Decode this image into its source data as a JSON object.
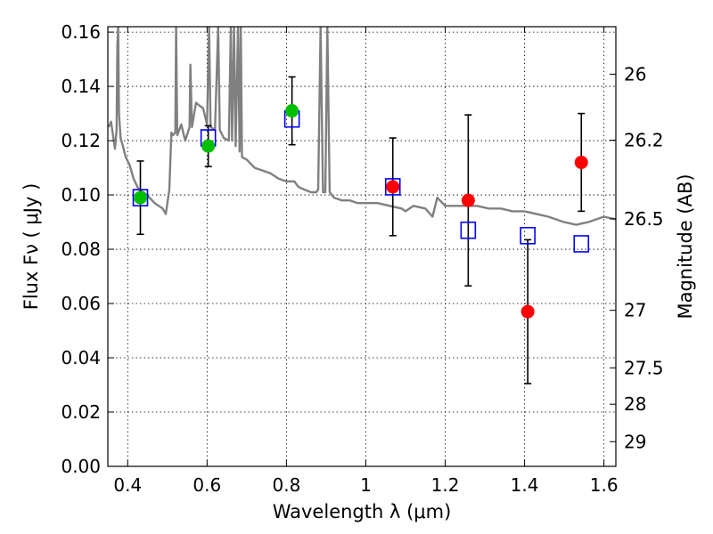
{
  "chart_data": {
    "type": "scatter",
    "xlabel": "Wavelength  λ (μm)",
    "ylabel": "Flux  Fν  ( μJy )",
    "y2label": "Magnitude (AB)",
    "xlim": [
      0.35,
      1.63
    ],
    "ylim": [
      0.0,
      0.162
    ],
    "grid": true,
    "x_ticks": [
      0.4,
      0.6,
      0.8,
      1.0,
      1.2,
      1.4,
      1.6
    ],
    "x_tick_labels": [
      "0.4",
      "0.6",
      "0.8",
      "1",
      "1.2",
      "1.4",
      "1.6"
    ],
    "y_ticks": [
      0.0,
      0.02,
      0.04,
      0.06,
      0.08,
      0.1,
      0.12,
      0.14,
      0.16
    ],
    "y_tick_labels": [
      "0.00",
      "0.02",
      "0.04",
      "0.06",
      "0.08",
      "0.10",
      "0.12",
      "0.14",
      "0.16"
    ],
    "right_axis_ticks": [
      {
        "label": "26",
        "flux": 0.1445
      },
      {
        "label": "26.2",
        "flux": 0.1202
      },
      {
        "label": "26.5",
        "flux": 0.0912
      },
      {
        "label": "27",
        "flux": 0.0575
      },
      {
        "label": "27.5",
        "flux": 0.0363
      },
      {
        "label": "28",
        "flux": 0.0229
      },
      {
        "label": "29",
        "flux": 0.0091
      }
    ],
    "colors": {
      "model": "#808080",
      "blue_squares": "#0000ff",
      "green_points": "#00bf00",
      "red_points": "#ff0000",
      "error_bars": "#000000"
    },
    "series": [
      {
        "style": "line",
        "points": [
          [
            0.352,
            0.125
          ],
          [
            0.358,
            0.127
          ],
          [
            0.363,
            0.122
          ],
          [
            0.368,
            0.117
          ],
          [
            0.372,
            0.124
          ],
          [
            0.374,
            0.155
          ],
          [
            0.376,
            0.162
          ],
          [
            0.378,
            0.13
          ],
          [
            0.382,
            0.121
          ],
          [
            0.388,
            0.118
          ],
          [
            0.395,
            0.114
          ],
          [
            0.405,
            0.111
          ],
          [
            0.415,
            0.106
          ],
          [
            0.428,
            0.102
          ],
          [
            0.44,
            0.101
          ],
          [
            0.455,
            0.099
          ],
          [
            0.468,
            0.097
          ],
          [
            0.478,
            0.096
          ],
          [
            0.488,
            0.095
          ],
          [
            0.496,
            0.093
          ],
          [
            0.505,
            0.102
          ],
          [
            0.51,
            0.123
          ],
          [
            0.514,
            0.122
          ],
          [
            0.52,
            0.123
          ],
          [
            0.522,
            0.162
          ],
          [
            0.525,
            0.122
          ],
          [
            0.535,
            0.126
          ],
          [
            0.545,
            0.12
          ],
          [
            0.556,
            0.125
          ],
          [
            0.558,
            0.148
          ],
          [
            0.562,
            0.125
          ],
          [
            0.572,
            0.134
          ],
          [
            0.58,
            0.133
          ],
          [
            0.59,
            0.132
          ],
          [
            0.6,
            0.126
          ],
          [
            0.605,
            0.162
          ],
          [
            0.609,
            0.125
          ],
          [
            0.62,
            0.124
          ],
          [
            0.628,
            0.162
          ],
          [
            0.632,
            0.124
          ],
          [
            0.642,
            0.121
          ],
          [
            0.655,
            0.12
          ],
          [
            0.66,
            0.162
          ],
          [
            0.663,
            0.12
          ],
          [
            0.668,
            0.162
          ],
          [
            0.672,
            0.118
          ],
          [
            0.678,
            0.162
          ],
          [
            0.682,
            0.116
          ],
          [
            0.685,
            0.162
          ],
          [
            0.688,
            0.114
          ],
          [
            0.7,
            0.113
          ],
          [
            0.72,
            0.11
          ],
          [
            0.74,
            0.109
          ],
          [
            0.76,
            0.108
          ],
          [
            0.78,
            0.106
          ],
          [
            0.8,
            0.105
          ],
          [
            0.82,
            0.105
          ],
          [
            0.83,
            0.103
          ],
          [
            0.845,
            0.102
          ],
          [
            0.862,
            0.101
          ],
          [
            0.875,
            0.101
          ],
          [
            0.88,
            0.102
          ],
          [
            0.886,
            0.162
          ],
          [
            0.892,
            0.101
          ],
          [
            0.898,
            0.101
          ],
          [
            0.903,
            0.162
          ],
          [
            0.909,
            0.101
          ],
          [
            0.92,
            0.099
          ],
          [
            0.94,
            0.098
          ],
          [
            0.96,
            0.098
          ],
          [
            0.98,
            0.097
          ],
          [
            1.0,
            0.097
          ],
          [
            1.03,
            0.097
          ],
          [
            1.06,
            0.096
          ],
          [
            1.09,
            0.095
          ],
          [
            1.1,
            0.094
          ],
          [
            1.12,
            0.096
          ],
          [
            1.15,
            0.095
          ],
          [
            1.168,
            0.092
          ],
          [
            1.18,
            0.099
          ],
          [
            1.2,
            0.096
          ],
          [
            1.22,
            0.096
          ],
          [
            1.25,
            0.096
          ],
          [
            1.28,
            0.096
          ],
          [
            1.31,
            0.095
          ],
          [
            1.34,
            0.095
          ],
          [
            1.37,
            0.094
          ],
          [
            1.4,
            0.094
          ],
          [
            1.43,
            0.093
          ],
          [
            1.46,
            0.092
          ],
          [
            1.5,
            0.09
          ],
          [
            1.53,
            0.089
          ],
          [
            1.56,
            0.09
          ],
          [
            1.6,
            0.092
          ],
          [
            1.63,
            0.091
          ]
        ]
      },
      {
        "style": "open-square",
        "x": [
          0.432,
          0.603,
          0.814,
          1.068,
          1.258,
          1.408,
          1.543
        ],
        "y": [
          0.099,
          0.121,
          0.128,
          0.103,
          0.087,
          0.085,
          0.082
        ]
      },
      {
        "style": "filled-circle",
        "x": [
          0.432,
          0.603,
          0.814
        ],
        "y": [
          0.099,
          0.118,
          0.131
        ],
        "yerr": [
          0.0135,
          0.0075,
          0.0125
        ]
      },
      {
        "style": "filled-circle",
        "x": [
          1.068,
          1.258,
          1.408,
          1.543
        ],
        "y": [
          0.103,
          0.098,
          0.057,
          0.112
        ],
        "yerr": [
          0.018,
          0.0315,
          0.0265,
          0.018
        ]
      }
    ]
  }
}
